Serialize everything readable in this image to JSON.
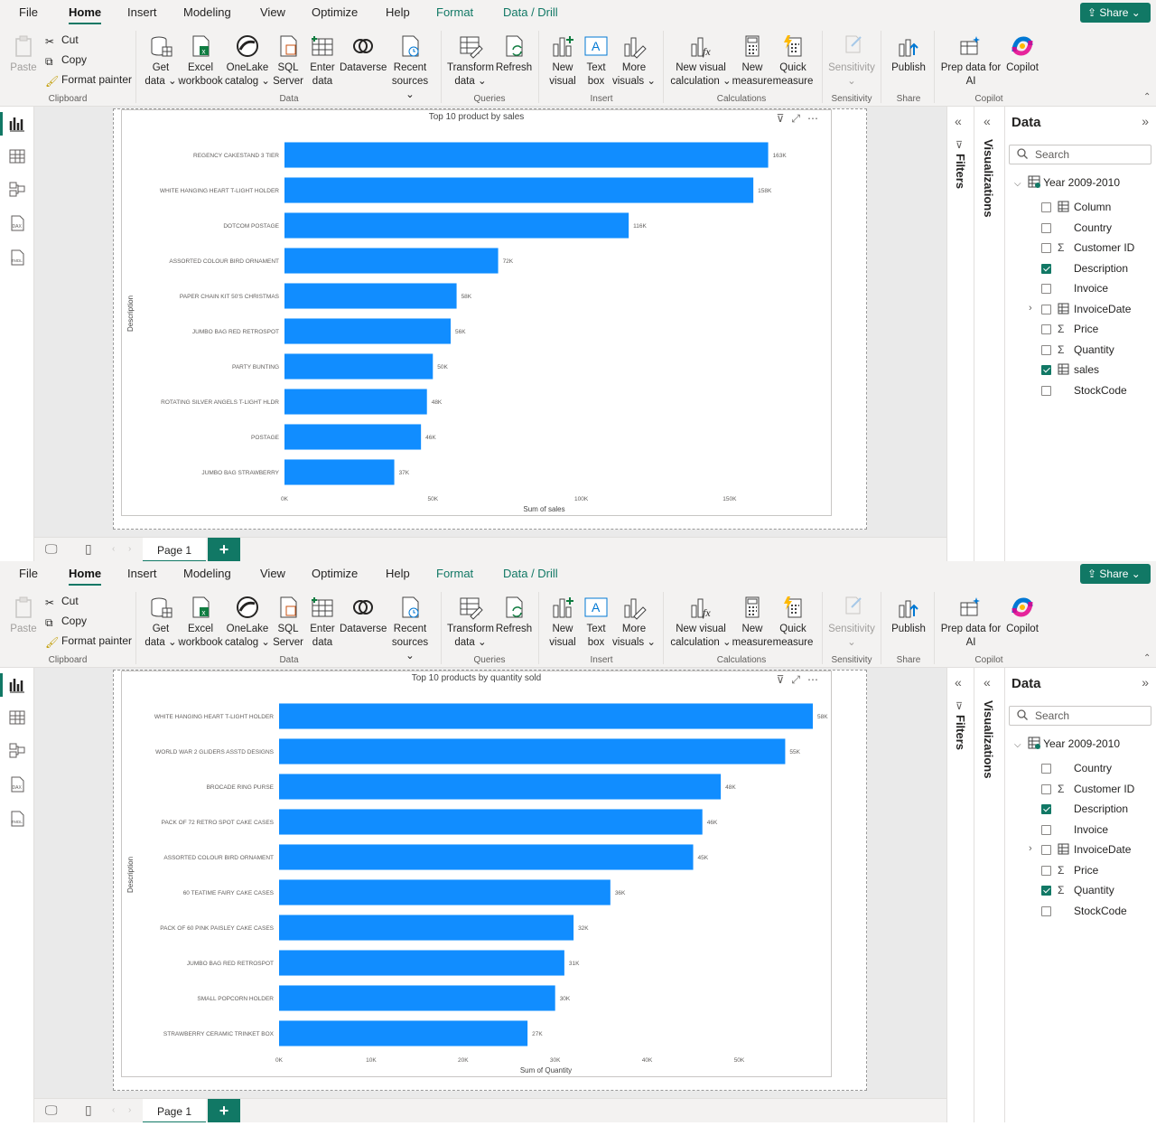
{
  "instances": [
    {
      "menu": {
        "file": "File",
        "tabs": [
          "Home",
          "Insert",
          "Modeling",
          "View",
          "Optimize",
          "Help"
        ],
        "active": "Home",
        "contextual": [
          "Format",
          "Data / Drill"
        ]
      },
      "share": "Share",
      "ribbon": {
        "clipboard": {
          "paste": "Paste",
          "cut": "Cut",
          "copy": "Copy",
          "format_painter": "Format painter",
          "group": "Clipboard"
        },
        "data": {
          "get_data": [
            "Get",
            "data ⌄"
          ],
          "excel": [
            "Excel",
            "workbook"
          ],
          "onelake": [
            "OneLake",
            "catalog ⌄"
          ],
          "sql": [
            "SQL",
            "Server"
          ],
          "enter": [
            "Enter",
            "data"
          ],
          "dataverse": [
            "Dataverse",
            ""
          ],
          "recent": [
            "Recent",
            "sources ⌄"
          ],
          "group": "Data"
        },
        "queries": {
          "transform": [
            "Transform",
            "data ⌄"
          ],
          "refresh": [
            "Refresh",
            ""
          ],
          "group": "Queries"
        },
        "insert": {
          "new_visual": [
            "New",
            "visual"
          ],
          "text_box": [
            "Text",
            "box"
          ],
          "more_visuals": [
            "More",
            "visuals ⌄"
          ],
          "group": "Insert"
        },
        "calculations": {
          "new_visual_calc": [
            "New visual",
            "calculation ⌄"
          ],
          "new_measure": [
            "New",
            "measure"
          ],
          "quick_measure": [
            "Quick",
            "measure"
          ],
          "group": "Calculations"
        },
        "sensitivity": {
          "label": [
            "Sensitivity",
            "⌄"
          ],
          "group": "Sensitivity"
        },
        "share": {
          "publish": [
            "Publish",
            ""
          ],
          "group": "Share"
        },
        "copilot": {
          "prep": [
            "Prep data for",
            "AI"
          ],
          "copilot": [
            "Copilot",
            ""
          ],
          "group": "Copilot"
        }
      },
      "chart_data": {
        "type": "bar",
        "orientation": "horizontal",
        "title": "Top 10 product by sales",
        "xlabel": "Sum of sales",
        "ylabel": "Description",
        "xlim": [
          0,
          175000
        ],
        "xticks": [
          0,
          50000,
          100000,
          150000
        ],
        "xtick_labels": [
          "0K",
          "50K",
          "100K",
          "150K"
        ],
        "categories": [
          "REGENCY CAKESTAND 3 TIER",
          "WHITE HANGING HEART T-LIGHT HOLDER",
          "DOTCOM POSTAGE",
          "ASSORTED COLOUR BIRD ORNAMENT",
          "PAPER CHAIN KIT 50'S CHRISTMAS",
          "JUMBO BAG RED RETROSPOT",
          "PARTY BUNTING",
          "ROTATING SILVER ANGELS T-LIGHT HLDR",
          "POSTAGE",
          "JUMBO BAG STRAWBERRY"
        ],
        "values": [
          163000,
          158000,
          116000,
          72000,
          58000,
          56000,
          50000,
          48000,
          46000,
          37000
        ],
        "data_labels": [
          "163K",
          "158K",
          "116K",
          "72K",
          "58K",
          "56K",
          "50K",
          "48K",
          "46K",
          "37K"
        ],
        "color": "#118dff",
        "grid": false
      },
      "page_tab": "Page 1",
      "filters_label": "Filters",
      "viz_label": "Visualizations",
      "data_pane": {
        "title": "Data",
        "search_placeholder": "Search",
        "table": "Year 2009-2010",
        "fields": [
          {
            "name": "Column",
            "sig": "table",
            "checked": false
          },
          {
            "name": "Country",
            "sig": "",
            "checked": false
          },
          {
            "name": "Customer ID",
            "sig": "Σ",
            "checked": false
          },
          {
            "name": "Description",
            "sig": "",
            "checked": true
          },
          {
            "name": "Invoice",
            "sig": "",
            "checked": false
          },
          {
            "name": "InvoiceDate",
            "sig": "table",
            "checked": false,
            "expandable": true
          },
          {
            "name": "Price",
            "sig": "Σ",
            "checked": false
          },
          {
            "name": "Quantity",
            "sig": "Σ",
            "checked": false
          },
          {
            "name": "sales",
            "sig": "table",
            "checked": true
          },
          {
            "name": "StockCode",
            "sig": "",
            "checked": false
          }
        ]
      }
    },
    {
      "menu": {
        "file": "File",
        "tabs": [
          "Home",
          "Insert",
          "Modeling",
          "View",
          "Optimize",
          "Help"
        ],
        "active": "Home",
        "contextual": [
          "Format",
          "Data / Drill"
        ]
      },
      "share": "Share",
      "ribbon": {
        "clipboard": {
          "paste": "Paste",
          "cut": "Cut",
          "copy": "Copy",
          "format_painter": "Format painter",
          "group": "Clipboard"
        },
        "data": {
          "get_data": [
            "Get",
            "data ⌄"
          ],
          "excel": [
            "Excel",
            "workbook"
          ],
          "onelake": [
            "OneLake",
            "catalog ⌄"
          ],
          "sql": [
            "SQL",
            "Server"
          ],
          "enter": [
            "Enter",
            "data"
          ],
          "dataverse": [
            "Dataverse",
            ""
          ],
          "recent": [
            "Recent",
            "sources ⌄"
          ],
          "group": "Data"
        },
        "queries": {
          "transform": [
            "Transform",
            "data ⌄"
          ],
          "refresh": [
            "Refresh",
            ""
          ],
          "group": "Queries"
        },
        "insert": {
          "new_visual": [
            "New",
            "visual"
          ],
          "text_box": [
            "Text",
            "box"
          ],
          "more_visuals": [
            "More",
            "visuals ⌄"
          ],
          "group": "Insert"
        },
        "calculations": {
          "new_visual_calc": [
            "New visual",
            "calculation ⌄"
          ],
          "new_measure": [
            "New",
            "measure"
          ],
          "quick_measure": [
            "Quick",
            "measure"
          ],
          "group": "Calculations"
        },
        "sensitivity": {
          "label": [
            "Sensitivity",
            "⌄"
          ],
          "group": "Sensitivity"
        },
        "share": {
          "publish": [
            "Publish",
            ""
          ],
          "group": "Share"
        },
        "copilot": {
          "prep": [
            "Prep data for",
            "AI"
          ],
          "copilot": [
            "Copilot",
            ""
          ],
          "group": "Copilot"
        }
      },
      "chart_data": {
        "type": "bar",
        "orientation": "horizontal",
        "title": "Top 10 products by quantity sold",
        "xlabel": "Sum of Quantity",
        "ylabel": "Description",
        "xlim": [
          0,
          58000
        ],
        "xticks": [
          0,
          10000,
          20000,
          30000,
          40000,
          50000
        ],
        "xtick_labels": [
          "0K",
          "10K",
          "20K",
          "30K",
          "40K",
          "50K"
        ],
        "categories": [
          "WHITE HANGING HEART T-LIGHT HOLDER",
          "WORLD WAR 2 GLIDERS ASSTD DESIGNS",
          "BROCADE RING PURSE",
          "PACK OF 72 RETRO SPOT CAKE CASES",
          "ASSORTED COLOUR BIRD ORNAMENT",
          "60 TEATIME FAIRY CAKE CASES",
          "PACK OF 60 PINK PAISLEY CAKE CASES",
          "JUMBO BAG RED RETROSPOT",
          "SMALL POPCORN HOLDER",
          "STRAWBERRY CERAMIC TRINKET BOX"
        ],
        "values": [
          58000,
          55000,
          48000,
          46000,
          45000,
          36000,
          32000,
          31000,
          30000,
          27000
        ],
        "data_labels": [
          "58K",
          "55K",
          "48K",
          "46K",
          "45K",
          "36K",
          "32K",
          "31K",
          "30K",
          "27K"
        ],
        "color": "#118dff",
        "grid": false
      },
      "page_tab": "Page 1",
      "filters_label": "Filters",
      "viz_label": "Visualizations",
      "data_pane": {
        "title": "Data",
        "search_placeholder": "Search",
        "table": "Year 2009-2010",
        "fields": [
          {
            "name": "Country",
            "sig": "",
            "checked": false
          },
          {
            "name": "Customer ID",
            "sig": "Σ",
            "checked": false
          },
          {
            "name": "Description",
            "sig": "",
            "checked": true
          },
          {
            "name": "Invoice",
            "sig": "",
            "checked": false
          },
          {
            "name": "InvoiceDate",
            "sig": "table",
            "checked": false,
            "expandable": true
          },
          {
            "name": "Price",
            "sig": "Σ",
            "checked": false
          },
          {
            "name": "Quantity",
            "sig": "Σ",
            "checked": true
          },
          {
            "name": "StockCode",
            "sig": "",
            "checked": false
          }
        ]
      }
    }
  ]
}
